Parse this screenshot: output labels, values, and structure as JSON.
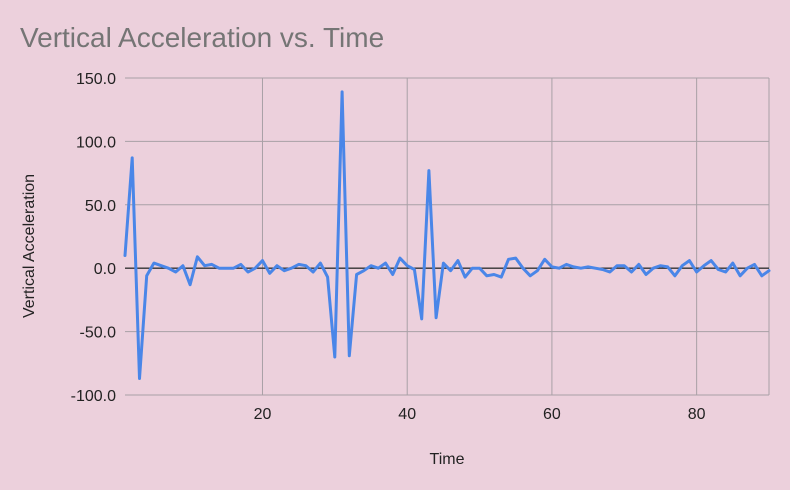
{
  "chart_data": {
    "type": "line",
    "title": "Vertical Acceleration vs. Time",
    "xlabel": "Time",
    "ylabel": "Vertical Acceleration",
    "xlim": [
      1,
      90
    ],
    "ylim": [
      -100,
      150
    ],
    "x_ticks": [
      20,
      40,
      60,
      80
    ],
    "x_tick_labels": [
      "20",
      "40",
      "60",
      "80"
    ],
    "y_ticks": [
      150,
      100,
      50,
      0,
      -50,
      -100
    ],
    "y_tick_labels": [
      "150.0",
      "100.0",
      "50.0",
      "0.0",
      "-50.0",
      "-100.0"
    ],
    "grid": true,
    "legend": "none",
    "series": [
      {
        "color": "#4a86e8",
        "x": [
          1,
          2,
          3,
          4,
          5,
          6,
          7,
          8,
          9,
          10,
          11,
          12,
          13,
          14,
          15,
          16,
          17,
          18,
          19,
          20,
          21,
          22,
          23,
          24,
          25,
          26,
          27,
          28,
          29,
          30,
          31,
          32,
          33,
          34,
          35,
          36,
          37,
          38,
          39,
          40,
          41,
          42,
          43,
          44,
          45,
          46,
          47,
          48,
          49,
          50,
          51,
          52,
          53,
          54,
          55,
          56,
          57,
          58,
          59,
          60,
          61,
          62,
          63,
          64,
          65,
          66,
          67,
          68,
          69,
          70,
          71,
          72,
          73,
          74,
          75,
          76,
          77,
          78,
          79,
          80,
          81,
          82,
          83,
          84,
          85,
          86,
          87,
          88,
          89,
          90
        ],
        "values": [
          10,
          87,
          -87,
          -6,
          4,
          2,
          0,
          -3,
          2,
          -13,
          9,
          2,
          3,
          0,
          0,
          0,
          3,
          -3,
          0,
          6,
          -4,
          2,
          -2,
          0,
          3,
          2,
          -3,
          4,
          -7,
          -70,
          139,
          -69,
          -5,
          -2,
          2,
          0,
          4,
          -5,
          8,
          2,
          -1,
          -40,
          77,
          -39,
          4,
          -2,
          6,
          -7,
          0,
          0,
          -6,
          -5,
          -7,
          7,
          8,
          0,
          -6,
          -2,
          7,
          1,
          0,
          3,
          1,
          0,
          1,
          0,
          -1,
          -3,
          2,
          2,
          -3,
          3,
          -5,
          0,
          2,
          1,
          -6,
          2,
          6,
          -3,
          2,
          6,
          -1,
          -3,
          4,
          -6,
          0,
          3,
          -6,
          -2
        ]
      }
    ]
  }
}
